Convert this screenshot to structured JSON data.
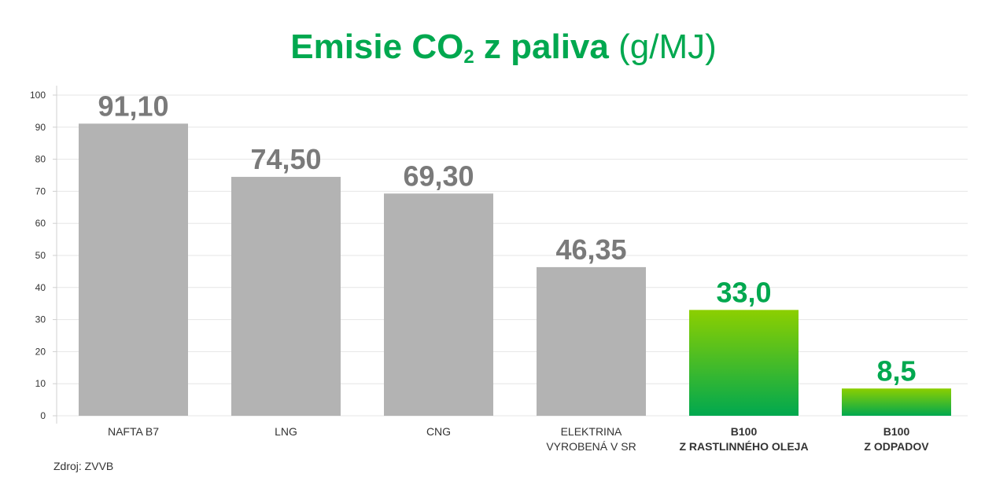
{
  "title": {
    "main": "Emisie CO",
    "subscript": "2",
    "rest": " z paliva",
    "unit": " (g/MJ)"
  },
  "source": "Zdroj: ZVVB",
  "colors": {
    "title": "#00a84f",
    "gray_bar": "#b3b3b3",
    "gray_label": "#7a7a7a",
    "green_label": "#00a84f",
    "green_top": "#8ccf00",
    "green_bottom": "#00a84f"
  },
  "chart_data": {
    "type": "bar",
    "ylim": [
      0,
      100
    ],
    "yticks": [
      0,
      10,
      20,
      30,
      40,
      50,
      60,
      70,
      80,
      90,
      100
    ],
    "grid": true,
    "categories": [
      [
        "NAFTA B7"
      ],
      [
        "LNG"
      ],
      [
        "CNG"
      ],
      [
        "ELEKTRINA",
        "VYROBENÁ V SR"
      ],
      [
        "B100",
        "Z RASTLINNÉHO OLEJA"
      ],
      [
        "B100",
        "Z ODPADOV"
      ]
    ],
    "values": [
      91.1,
      74.5,
      69.3,
      46.35,
      33.0,
      8.5
    ],
    "value_labels": [
      "91,10",
      "74,50",
      "69,30",
      "46,35",
      "33,0",
      "8,5"
    ],
    "highlight": [
      false,
      false,
      false,
      false,
      true,
      true
    ]
  }
}
